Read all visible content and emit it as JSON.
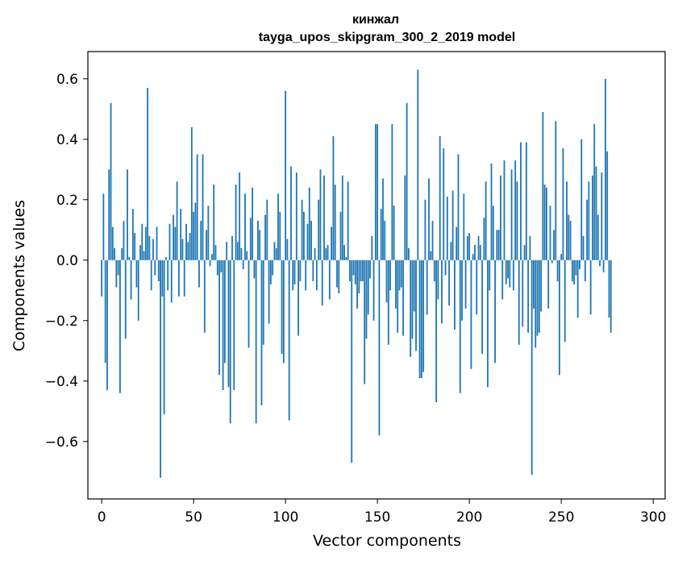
{
  "chart_data": {
    "type": "bar",
    "title": "кинжал",
    "subtitle": "tayga_upos_skipgram_300_2_2019 model",
    "xlabel": "Vector components",
    "ylabel": "Components values",
    "xlim": [
      -7.5,
      306.5
    ],
    "ylim": [
      -0.79,
      0.69
    ],
    "xticks": [
      0,
      50,
      100,
      150,
      200,
      250,
      300
    ],
    "yticks": [
      -0.6,
      -0.4,
      -0.2,
      0.0,
      0.2,
      0.4,
      0.6
    ],
    "ytick_labels": [
      "−0.6",
      "−0.4",
      "−0.2",
      "0.0",
      "0.2",
      "0.4",
      "0.6"
    ],
    "bar_color": "#1f77b4",
    "grid": false,
    "series": [
      {
        "name": "кинжал",
        "values": [
          -0.12,
          0.22,
          -0.34,
          -0.43,
          0.3,
          0.52,
          0.11,
          0.04,
          -0.09,
          -0.05,
          -0.44,
          0.04,
          0.13,
          -0.26,
          0.3,
          0.01,
          -0.13,
          0.17,
          0.09,
          -0.09,
          -0.2,
          0.05,
          0.12,
          0.03,
          0.11,
          0.57,
          0.08,
          -0.1,
          0.07,
          -0.05,
          0.11,
          -0.07,
          -0.72,
          -0.12,
          -0.51,
          0.01,
          -0.1,
          0.12,
          -0.14,
          0.15,
          0.11,
          0.26,
          -0.12,
          0.17,
          0.07,
          -0.12,
          0.12,
          0.06,
          0.09,
          0.44,
          0.16,
          0.19,
          0.35,
          -0.09,
          0.13,
          0.35,
          -0.24,
          0.1,
          0.18,
          -0.02,
          0.02,
          0.25,
          0.05,
          -0.05,
          -0.38,
          -0.04,
          -0.43,
          -0.34,
          0.06,
          -0.42,
          -0.54,
          0.08,
          -0.43,
          0.25,
          0.06,
          0.29,
          0.04,
          -0.03,
          0.22,
          0.03,
          -0.29,
          0.14,
          0.24,
          -0.06,
          -0.54,
          0.13,
          0.1,
          -0.48,
          -0.28,
          0.15,
          0.2,
          -0.21,
          -0.08,
          -0.05,
          0.06,
          0.04,
          0.22,
          0.16,
          -0.31,
          -0.34,
          0.56,
          0.07,
          -0.53,
          0.31,
          -0.1,
          -0.08,
          0.29,
          -0.25,
          -0.07,
          0.2,
          0.16,
          -0.1,
          0.12,
          0.24,
          0.13,
          -0.07,
          0.04,
          -0.1,
          0.2,
          0.3,
          -0.15,
          0.28,
          0.04,
          0.05,
          -0.13,
          0.11,
          0.41,
          0.25,
          -0.09,
          -0.11,
          0.16,
          0.28,
          0.05,
          0.01,
          0.26,
          -0.07,
          -0.67,
          -0.05,
          -0.08,
          -0.16,
          -0.11,
          -0.07,
          -0.07,
          -0.41,
          -0.26,
          -0.18,
          -0.06,
          0.08,
          -0.2,
          0.45,
          0.45,
          -0.58,
          0.17,
          0.27,
          0.13,
          -0.14,
          -0.28,
          -0.1,
          0.45,
          0.18,
          -0.16,
          -0.24,
          -0.1,
          -0.09,
          -0.25,
          0.28,
          0.52,
          0.04,
          -0.32,
          -0.26,
          -0.17,
          -0.3,
          0.63,
          -0.39,
          -0.39,
          -0.37,
          0.2,
          -0.18,
          0.27,
          0.03,
          0.13,
          -0.07,
          -0.47,
          -0.13,
          0.41,
          -0.21,
          0.37,
          -0.05,
          0.21,
          -0.15,
          0.06,
          0.23,
          -0.23,
          0.11,
          0.35,
          -0.44,
          -0.2,
          0.22,
          -0.16,
          0.08,
          0.09,
          -0.36,
          0.02,
          0.05,
          -0.18,
          0.08,
          0.05,
          -0.31,
          0.14,
          0.26,
          -0.42,
          -0.1,
          0.32,
          0.18,
          -0.34,
          0.1,
          0.1,
          0.28,
          -0.13,
          0.33,
          -0.08,
          -0.06,
          -0.09,
          0.3,
          -0.1,
          0.33,
          0.26,
          -0.28,
          0.39,
          -0.22,
          0.05,
          0.39,
          -0.24,
          0.08,
          -0.71,
          -0.16,
          -0.29,
          -0.25,
          -0.24,
          -0.17,
          0.49,
          0.25,
          0.24,
          -0.16,
          0.18,
          -0.01,
          0.1,
          0.46,
          -0.07,
          -0.38,
          0.02,
          0.37,
          -0.27,
          0.26,
          0.15,
          0.13,
          -0.07,
          -0.08,
          -0.05,
          -0.19,
          -0.03,
          0.4,
          0.08,
          -0.07,
          0.2,
          0.26,
          -0.18,
          0.28,
          0.45,
          0.31,
          0.15,
          -0.02,
          0.29,
          -0.04,
          0.6,
          0.36,
          -0.19,
          -0.24
        ]
      }
    ]
  }
}
